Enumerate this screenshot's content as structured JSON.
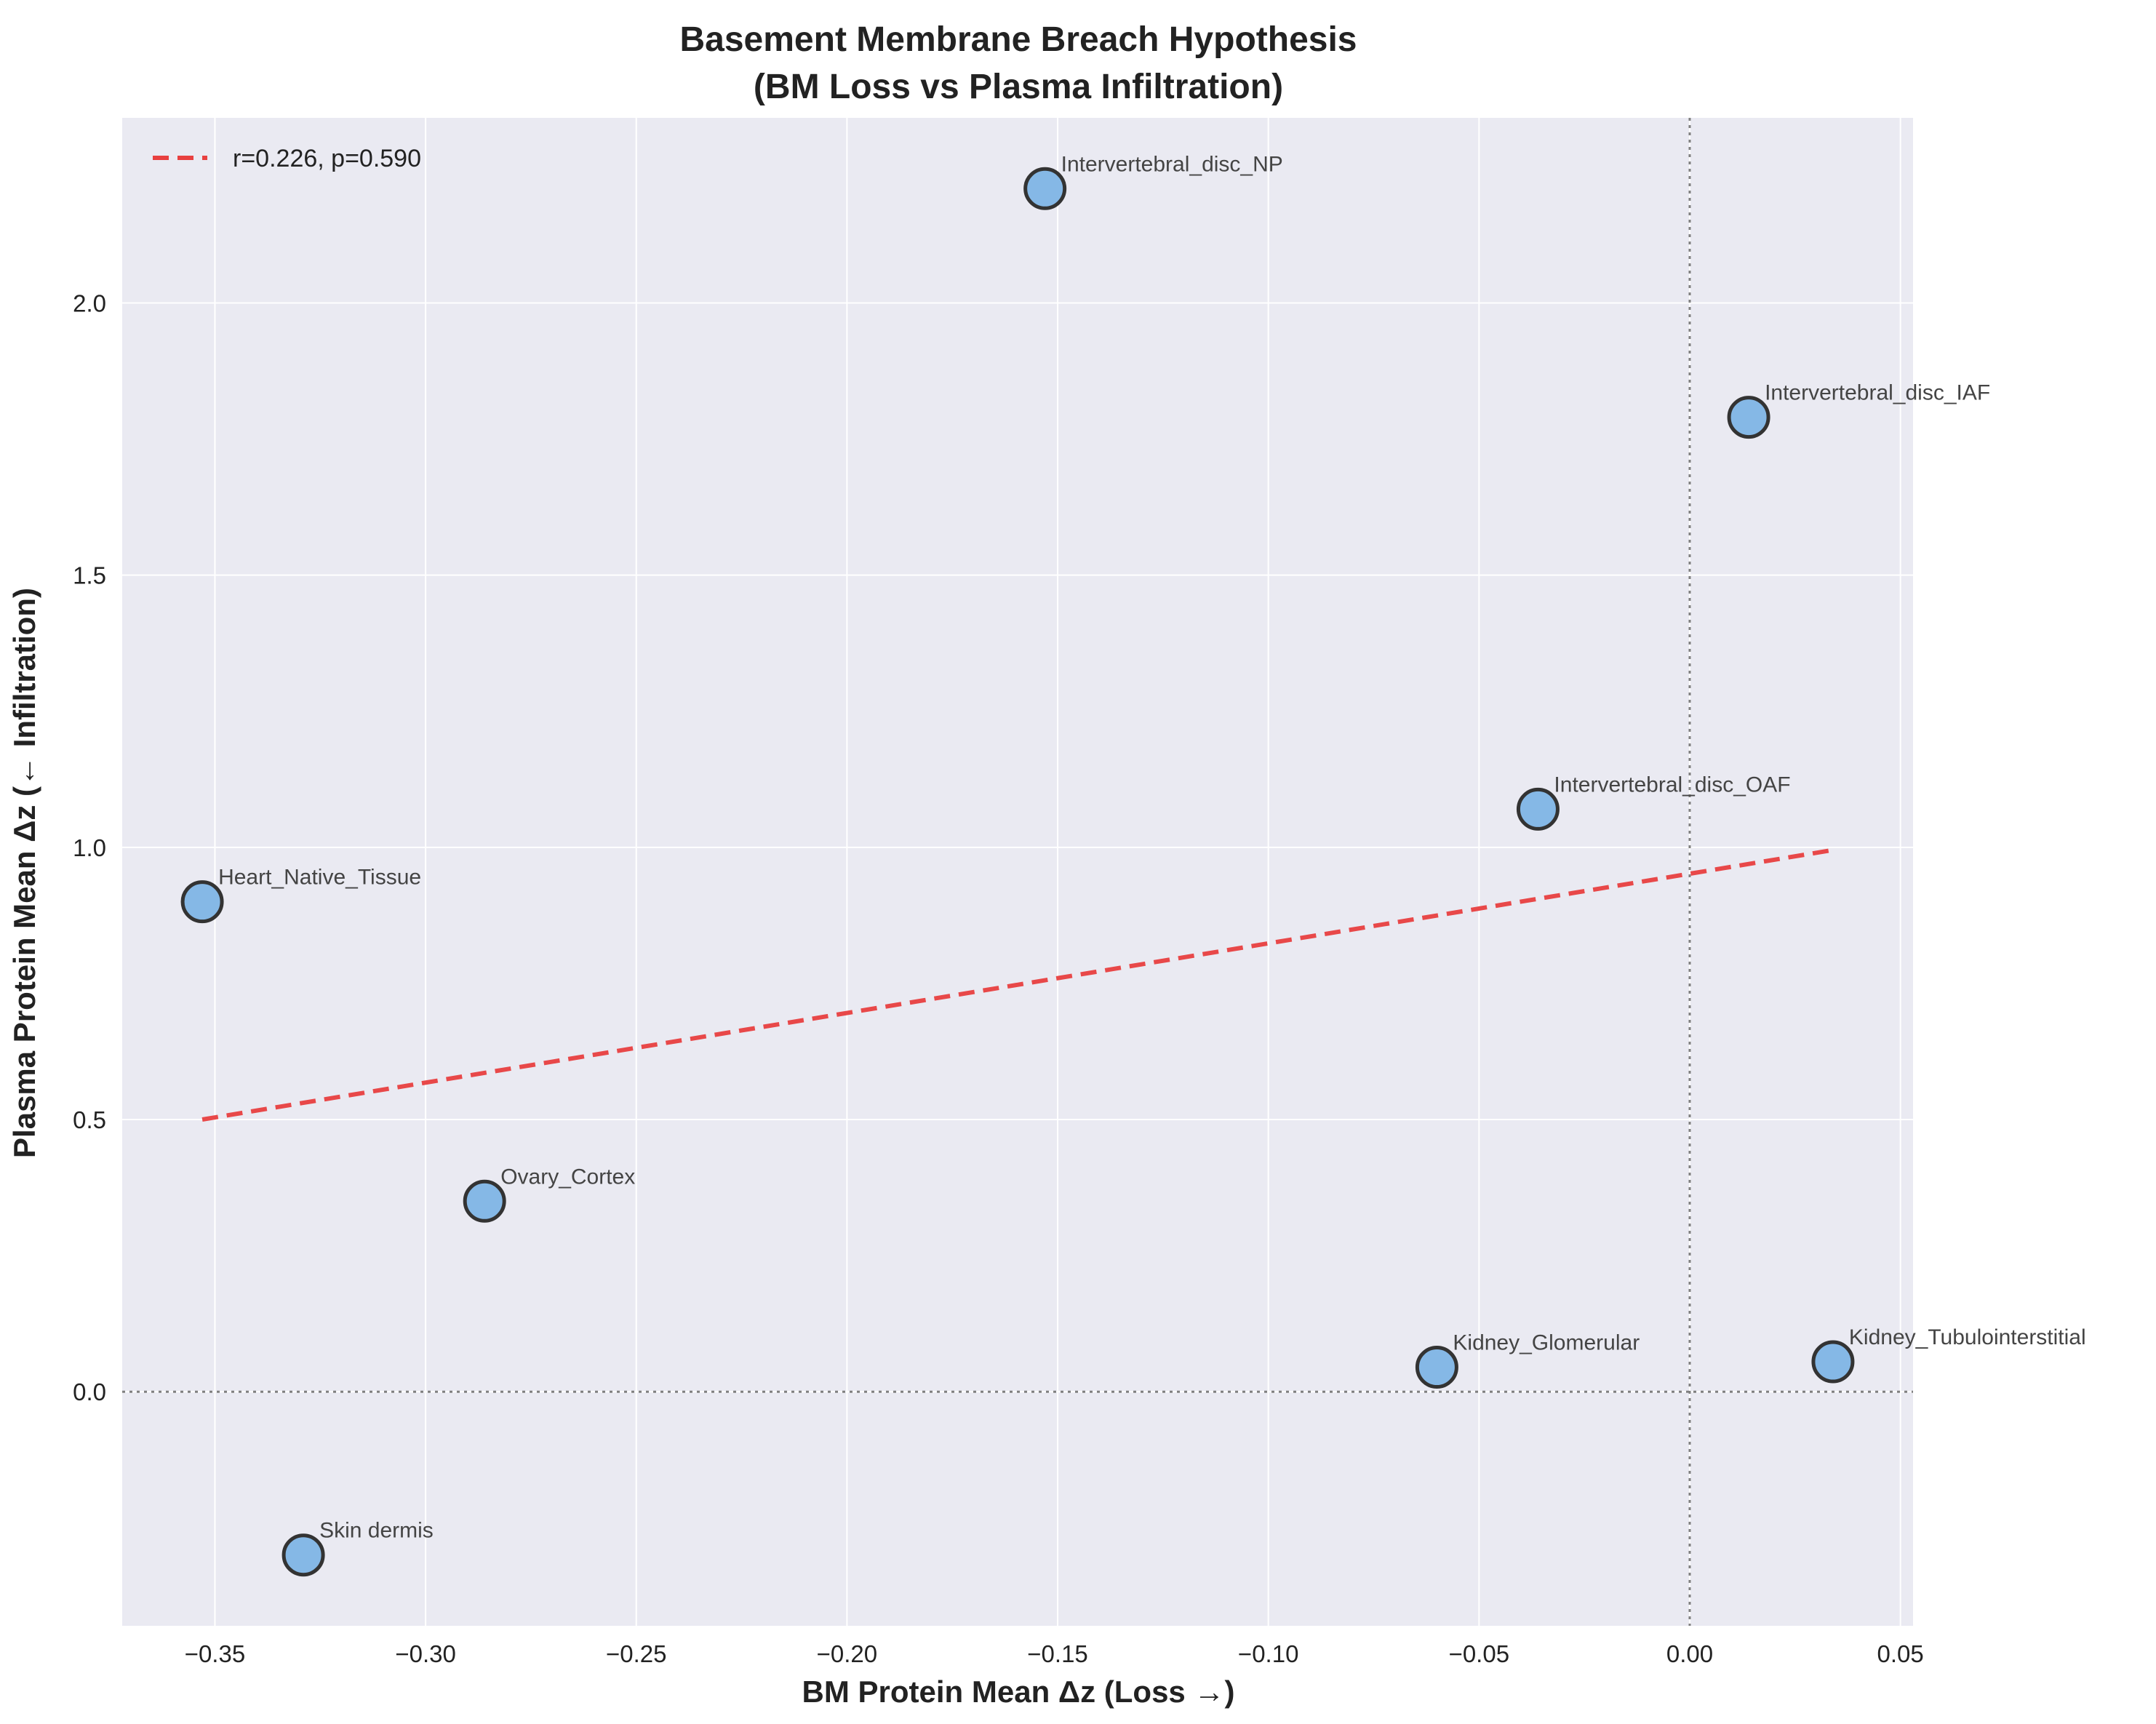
{
  "chart_data": {
    "type": "scatter",
    "title": "Basement Membrane Breach Hypothesis",
    "subtitle": "(BM Loss vs Plasma Infiltration)",
    "xlabel": "BM Protein Mean Δz (Loss →)",
    "ylabel": "Plasma Protein Mean Δz (← Infiltration)",
    "xlim": [
      -0.372,
      0.053
    ],
    "ylim": [
      -0.43,
      2.34
    ],
    "xticks": [
      -0.35,
      -0.3,
      -0.25,
      -0.2,
      -0.15,
      -0.1,
      -0.05,
      0.0,
      0.05
    ],
    "xtick_labels": [
      "−0.35",
      "−0.30",
      "−0.25",
      "−0.20",
      "−0.15",
      "−0.10",
      "−0.05",
      "0.00",
      "0.05"
    ],
    "yticks": [
      0.0,
      0.5,
      1.0,
      1.5,
      2.0
    ],
    "ytick_labels": [
      "0.0",
      "0.5",
      "1.0",
      "1.5",
      "2.0"
    ],
    "grid": true,
    "reference_lines": {
      "x": 0,
      "y": 0
    },
    "legend": {
      "position": "top-left",
      "entries": [
        "r=0.226, p=0.590"
      ]
    },
    "colors": {
      "point_fill": "#85b8e6",
      "point_edge": "#333333",
      "trend": "#e84040",
      "background": "#eaeaf2"
    },
    "points": [
      {
        "label": "Intervertebral_disc_NP",
        "x": -0.153,
        "y": 2.21
      },
      {
        "label": "Intervertebral_disc_IAF",
        "x": 0.014,
        "y": 1.79
      },
      {
        "label": "Intervertebral_disc_OAF",
        "x": -0.036,
        "y": 1.07
      },
      {
        "label": "Heart_Native_Tissue",
        "x": -0.353,
        "y": 0.9
      },
      {
        "label": "Ovary_Cortex",
        "x": -0.286,
        "y": 0.35
      },
      {
        "label": "Kidney_Glomerular",
        "x": -0.06,
        "y": 0.045
      },
      {
        "label": "Kidney_Tubulointerstitial",
        "x": 0.034,
        "y": 0.055
      },
      {
        "label": "Skin dermis",
        "x": -0.329,
        "y": -0.3
      }
    ],
    "trendline": {
      "x": [
        -0.353,
        0.034
      ],
      "y": [
        0.5,
        0.995
      ]
    }
  }
}
